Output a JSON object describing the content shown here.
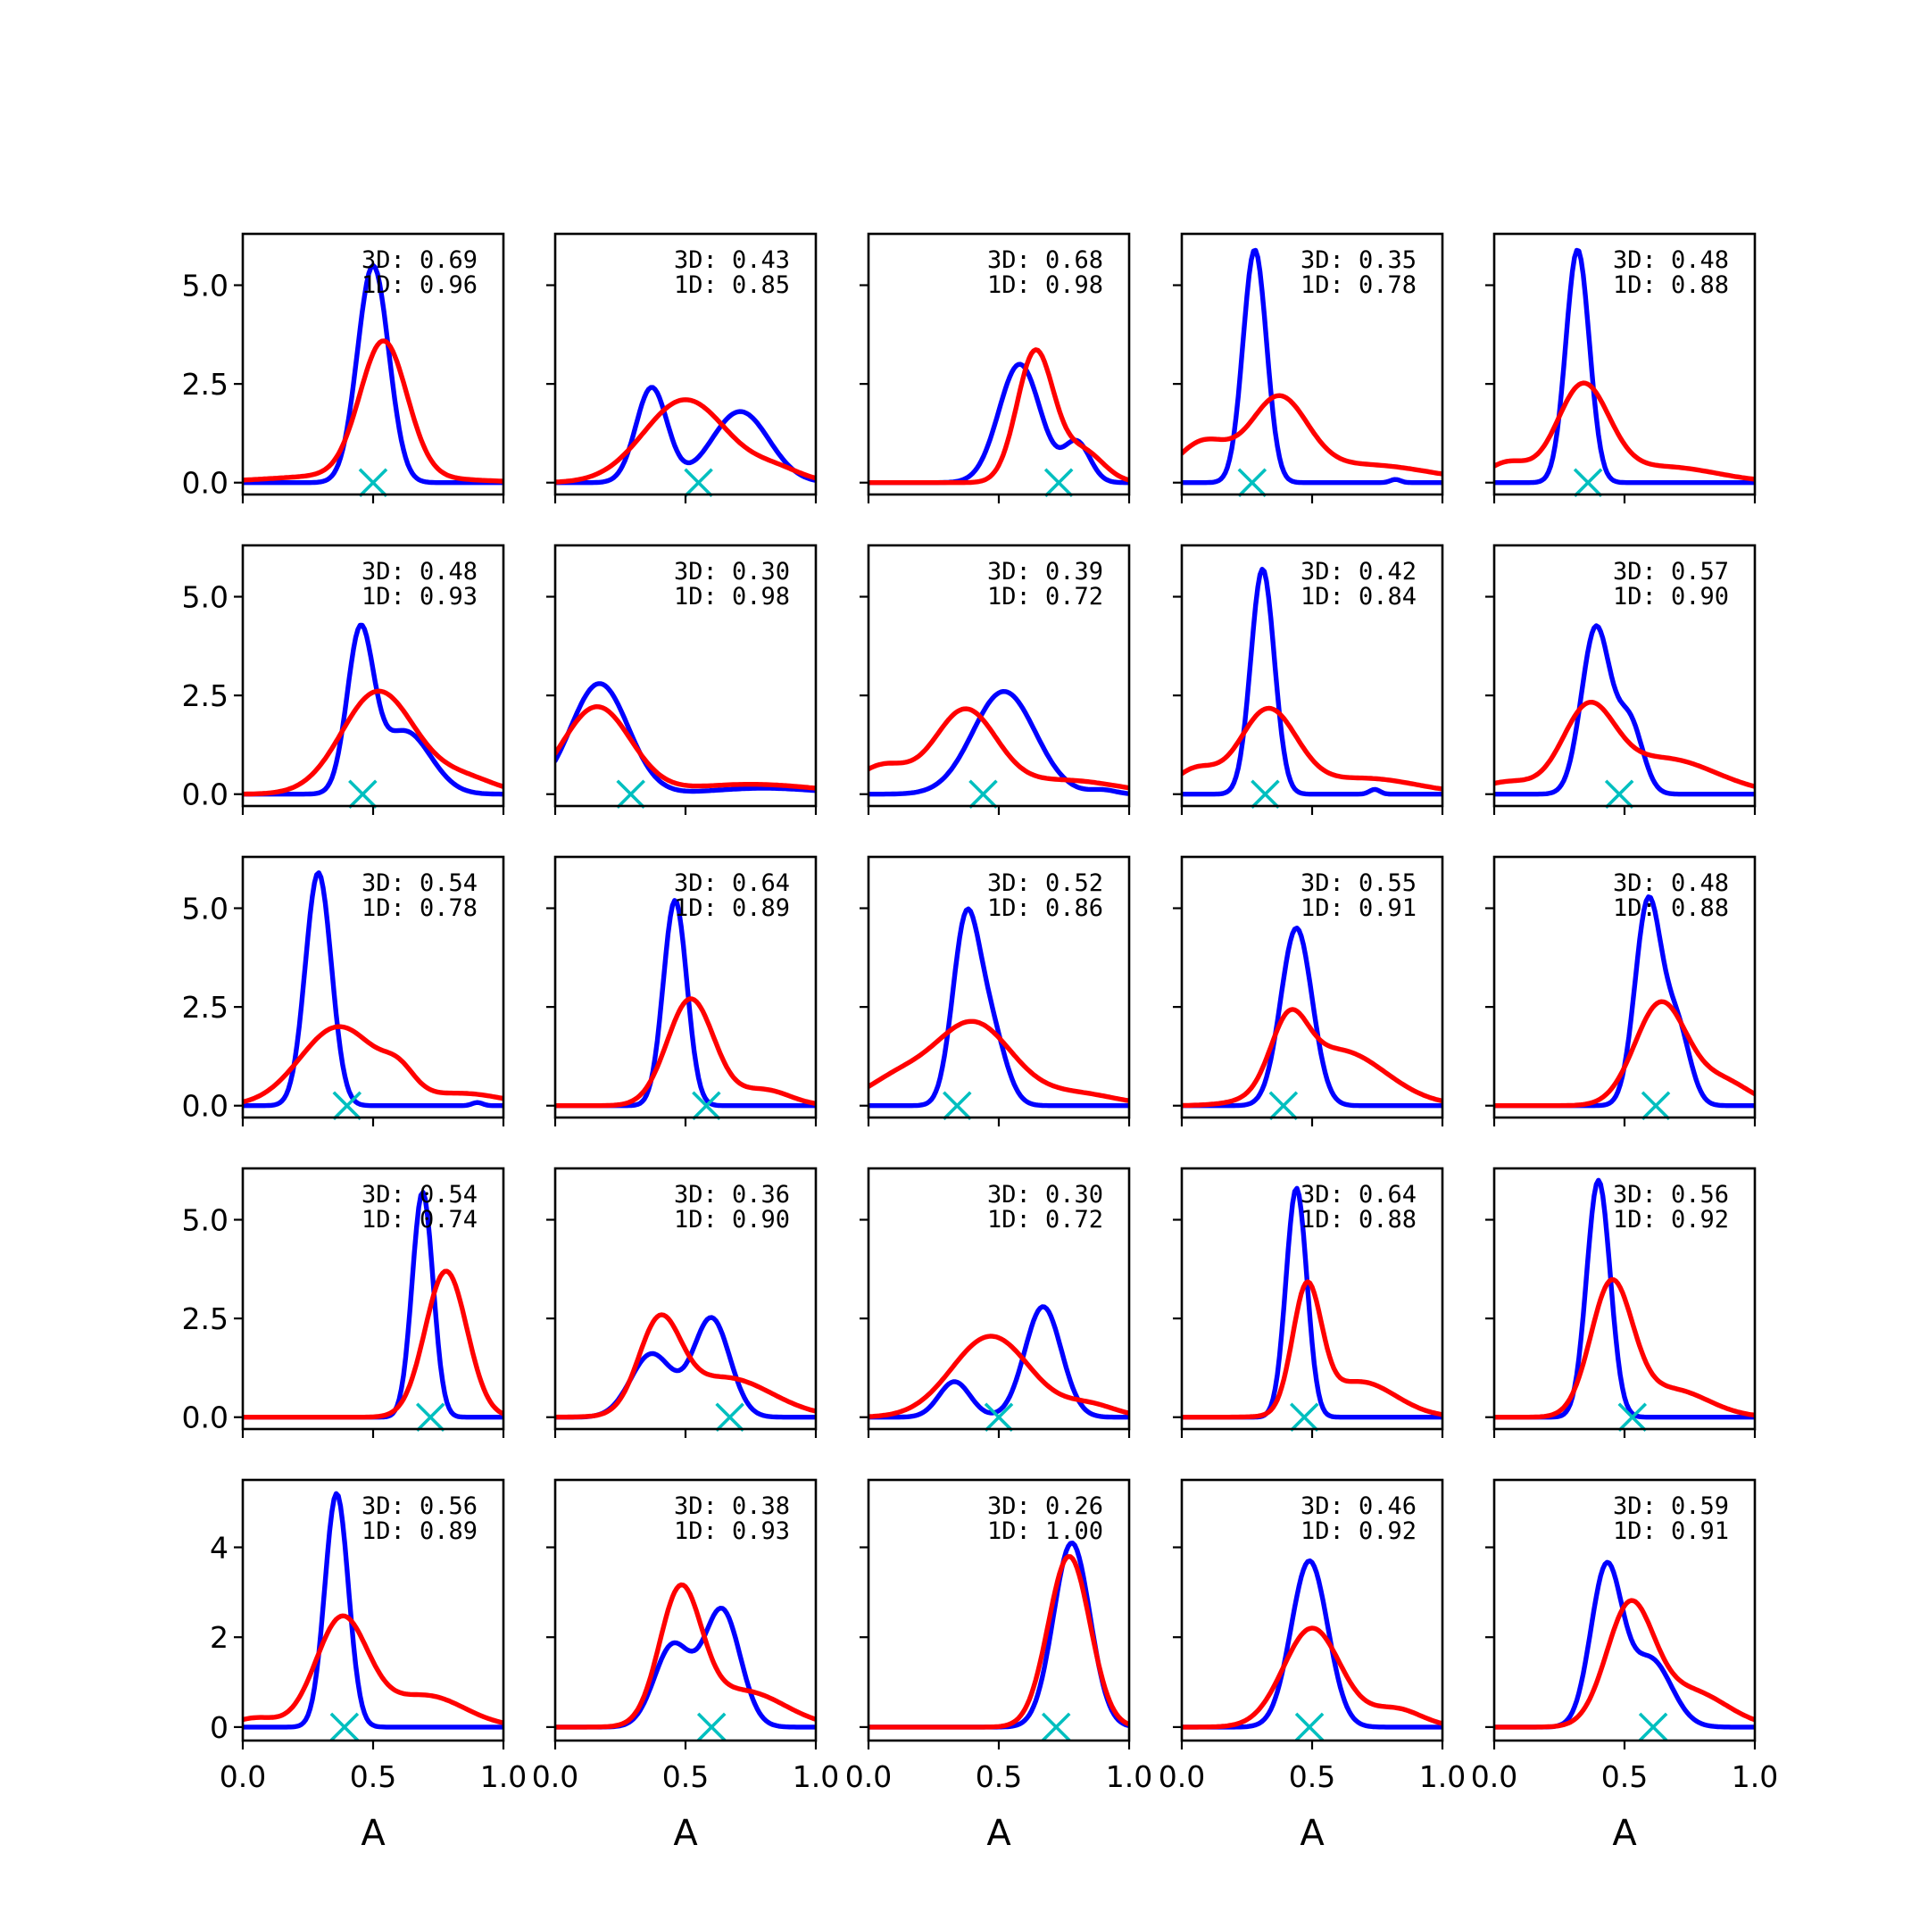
{
  "chart_data": {
    "type": "line",
    "layout": "grid",
    "rows": 5,
    "cols": 5,
    "xlabel": "A",
    "xlim": [
      0,
      1
    ],
    "xticks": [
      0.0,
      0.5,
      1.0
    ],
    "xtick_labels": [
      "0.0",
      "0.5",
      "1.0"
    ],
    "row_yticks": [
      {
        "ylim": [
          -0.3,
          6.3
        ],
        "ticks": [
          0.0,
          2.5,
          5.0
        ],
        "labels": [
          "0.0",
          "2.5",
          "5.0"
        ]
      },
      {
        "ylim": [
          -0.3,
          6.3
        ],
        "ticks": [
          0.0,
          2.5,
          5.0
        ],
        "labels": [
          "0.0",
          "2.5",
          "5.0"
        ]
      },
      {
        "ylim": [
          -0.3,
          6.3
        ],
        "ticks": [
          0.0,
          2.5,
          5.0
        ],
        "labels": [
          "0.0",
          "2.5",
          "5.0"
        ]
      },
      {
        "ylim": [
          -0.3,
          6.3
        ],
        "ticks": [
          0.0,
          2.5,
          5.0
        ],
        "labels": [
          "0.0",
          "2.5",
          "5.0"
        ]
      },
      {
        "ylim": [
          -0.3,
          5.5
        ],
        "ticks": [
          0,
          2,
          4
        ],
        "labels": [
          "0",
          "2",
          "4"
        ]
      }
    ],
    "colors": {
      "series_3d": "#0000ff",
      "series_1d": "#ff0000",
      "truth": "#00bfbf"
    },
    "panels": [
      {
        "text_3d": "3D: 0.69",
        "text_1d": "1D: 0.96",
        "truth": 0.5,
        "blue": [
          [
            0.5,
            0.06,
            5.5
          ],
          [
            1.0,
            0.0,
            0.0
          ]
        ],
        "red": [
          [
            0.54,
            0.09,
            3.4
          ],
          [
            0.45,
            0.3,
            0.2
          ]
        ]
      },
      {
        "text_3d": "3D: 0.43",
        "text_1d": "1D: 0.85",
        "truth": 0.55,
        "blue": [
          [
            0.37,
            0.06,
            2.4
          ],
          [
            0.71,
            0.11,
            1.8
          ]
        ],
        "red": [
          [
            0.5,
            0.16,
            2.1
          ],
          [
            0.85,
            0.1,
            0.3
          ]
        ]
      },
      {
        "text_3d": "3D: 0.68",
        "text_1d": "1D: 0.98",
        "truth": 0.73,
        "blue": [
          [
            0.58,
            0.08,
            3.0
          ],
          [
            0.8,
            0.05,
            1.0
          ]
        ],
        "red": [
          [
            0.64,
            0.07,
            3.3
          ],
          [
            0.82,
            0.08,
            0.8
          ]
        ]
      },
      {
        "text_3d": "3D: 0.35",
        "text_1d": "1D: 0.78",
        "truth": 0.27,
        "blue": [
          [
            0.28,
            0.045,
            5.9
          ],
          [
            0.82,
            0.02,
            0.08
          ]
        ],
        "red": [
          [
            0.37,
            0.11,
            2.0
          ],
          [
            0.08,
            0.1,
            1.0
          ],
          [
            0.7,
            0.25,
            0.45
          ]
        ]
      },
      {
        "text_3d": "3D: 0.48",
        "text_1d": "1D: 0.88",
        "truth": 0.36,
        "blue": [
          [
            0.32,
            0.045,
            5.9
          ],
          [
            1.0,
            0.0,
            0.0
          ]
        ],
        "red": [
          [
            0.34,
            0.1,
            2.4
          ],
          [
            0.05,
            0.08,
            0.5
          ],
          [
            0.65,
            0.2,
            0.4
          ]
        ]
      },
      {
        "text_3d": "3D: 0.48",
        "text_1d": "1D: 0.93",
        "truth": 0.46,
        "blue": [
          [
            0.45,
            0.05,
            3.9
          ],
          [
            0.62,
            0.1,
            1.6
          ]
        ],
        "red": [
          [
            0.52,
            0.14,
            2.6
          ],
          [
            0.85,
            0.12,
            0.4
          ]
        ]
      },
      {
        "text_3d": "3D: 0.30",
        "text_1d": "1D: 0.98",
        "truth": 0.29,
        "blue": [
          [
            0.17,
            0.11,
            2.8
          ],
          [
            0.8,
            0.2,
            0.15
          ]
        ],
        "red": [
          [
            0.16,
            0.13,
            2.2
          ],
          [
            0.75,
            0.25,
            0.25
          ]
        ]
      },
      {
        "text_3d": "3D: 0.39",
        "text_1d": "1D: 0.72",
        "truth": 0.44,
        "blue": [
          [
            0.52,
            0.12,
            2.6
          ],
          [
            0.9,
            0.05,
            0.1
          ]
        ],
        "red": [
          [
            0.37,
            0.12,
            2.1
          ],
          [
            0.05,
            0.1,
            0.7
          ],
          [
            0.75,
            0.2,
            0.35
          ]
        ]
      },
      {
        "text_3d": "3D: 0.42",
        "text_1d": "1D: 0.84",
        "truth": 0.32,
        "blue": [
          [
            0.31,
            0.045,
            5.7
          ],
          [
            0.74,
            0.02,
            0.12
          ]
        ],
        "red": [
          [
            0.33,
            0.11,
            2.1
          ],
          [
            0.05,
            0.08,
            0.6
          ],
          [
            0.7,
            0.2,
            0.4
          ]
        ]
      },
      {
        "text_3d": "3D: 0.57",
        "text_1d": "1D: 0.90",
        "truth": 0.48,
        "blue": [
          [
            0.39,
            0.055,
            4.2
          ],
          [
            0.52,
            0.05,
            1.8
          ]
        ],
        "red": [
          [
            0.36,
            0.1,
            2.0
          ],
          [
            0.05,
            0.1,
            0.3
          ],
          [
            0.65,
            0.2,
            0.9
          ]
        ]
      },
      {
        "text_3d": "3D: 0.54",
        "text_1d": "1D: 0.78",
        "truth": 0.4,
        "blue": [
          [
            0.29,
            0.05,
            5.9
          ],
          [
            0.9,
            0.02,
            0.08
          ]
        ],
        "red": [
          [
            0.37,
            0.15,
            2.0
          ],
          [
            0.6,
            0.06,
            0.5
          ],
          [
            0.85,
            0.15,
            0.3
          ]
        ]
      },
      {
        "text_3d": "3D: 0.64",
        "text_1d": "1D: 0.89",
        "truth": 0.58,
        "blue": [
          [
            0.46,
            0.045,
            5.2
          ],
          [
            1.0,
            0.0,
            0.0
          ]
        ],
        "red": [
          [
            0.52,
            0.09,
            2.7
          ],
          [
            0.8,
            0.1,
            0.4
          ]
        ]
      },
      {
        "text_3d": "3D: 0.52",
        "text_1d": "1D: 0.86",
        "truth": 0.34,
        "blue": [
          [
            0.37,
            0.05,
            4.2
          ],
          [
            0.46,
            0.06,
            2.1
          ]
        ],
        "red": [
          [
            0.4,
            0.15,
            2.1
          ],
          [
            0.1,
            0.12,
            0.6
          ],
          [
            0.8,
            0.15,
            0.3
          ]
        ]
      },
      {
        "text_3d": "3D: 0.55",
        "text_1d": "1D: 0.91",
        "truth": 0.39,
        "blue": [
          [
            0.44,
            0.06,
            4.5
          ],
          [
            1.0,
            0.0,
            0.0
          ]
        ],
        "red": [
          [
            0.41,
            0.07,
            1.6
          ],
          [
            0.6,
            0.18,
            1.4
          ]
        ]
      },
      {
        "text_3d": "3D: 0.48",
        "text_1d": "1D: 0.88",
        "truth": 0.62,
        "blue": [
          [
            0.59,
            0.05,
            5.1
          ],
          [
            0.7,
            0.05,
            2.0
          ]
        ],
        "red": [
          [
            0.64,
            0.1,
            2.6
          ],
          [
            0.88,
            0.1,
            0.6
          ]
        ]
      },
      {
        "text_3d": "3D: 0.54",
        "text_1d": "1D: 0.74",
        "truth": 0.72,
        "blue": [
          [
            0.69,
            0.04,
            5.7
          ],
          [
            1.0,
            0.0,
            0.0
          ]
        ],
        "red": [
          [
            0.78,
            0.08,
            3.7
          ],
          [
            1.0,
            0.0,
            0.0
          ]
        ]
      },
      {
        "text_3d": "3D: 0.36",
        "text_1d": "1D: 0.90",
        "truth": 0.67,
        "blue": [
          [
            0.37,
            0.08,
            1.6
          ],
          [
            0.6,
            0.07,
            2.5
          ]
        ],
        "red": [
          [
            0.4,
            0.08,
            2.2
          ],
          [
            0.65,
            0.18,
            1.0
          ]
        ]
      },
      {
        "text_3d": "3D: 0.30",
        "text_1d": "1D: 0.72",
        "truth": 0.5,
        "blue": [
          [
            0.33,
            0.06,
            0.9
          ],
          [
            0.67,
            0.07,
            2.8
          ]
        ],
        "red": [
          [
            0.47,
            0.15,
            2.05
          ],
          [
            0.85,
            0.1,
            0.3
          ]
        ]
      },
      {
        "text_3d": "3D: 0.64",
        "text_1d": "1D: 0.88",
        "truth": 0.47,
        "blue": [
          [
            0.44,
            0.04,
            5.8
          ],
          [
            1.0,
            0.0,
            0.0
          ]
        ],
        "red": [
          [
            0.48,
            0.055,
            3.1
          ],
          [
            0.68,
            0.14,
            0.9
          ]
        ]
      },
      {
        "text_3d": "3D: 0.56",
        "text_1d": "1D: 0.92",
        "truth": 0.53,
        "blue": [
          [
            0.4,
            0.045,
            6.0
          ],
          [
            1.0,
            0.0,
            0.0
          ]
        ],
        "red": [
          [
            0.45,
            0.08,
            3.3
          ],
          [
            0.68,
            0.14,
            0.7
          ]
        ]
      },
      {
        "text_3d": "3D: 0.56",
        "text_1d": "1D: 0.89",
        "truth": 0.39,
        "blue": [
          [
            0.36,
            0.045,
            5.2
          ],
          [
            1.0,
            0.0,
            0.0
          ]
        ],
        "red": [
          [
            0.38,
            0.1,
            2.4
          ],
          [
            0.05,
            0.08,
            0.2
          ],
          [
            0.7,
            0.15,
            0.7
          ]
        ]
      },
      {
        "text_3d": "3D: 0.38",
        "text_1d": "1D: 0.93",
        "truth": 0.6,
        "blue": [
          [
            0.45,
            0.07,
            1.8
          ],
          [
            0.64,
            0.07,
            2.6
          ]
        ],
        "red": [
          [
            0.48,
            0.08,
            2.9
          ],
          [
            0.72,
            0.16,
            0.8
          ]
        ]
      },
      {
        "text_3d": "3D: 0.26",
        "text_1d": "1D: 1.00",
        "truth": 0.72,
        "blue": [
          [
            0.78,
            0.07,
            4.1
          ],
          [
            1.0,
            0.0,
            0.0
          ]
        ],
        "red": [
          [
            0.77,
            0.08,
            3.8
          ],
          [
            1.0,
            0.0,
            0.0
          ]
        ]
      },
      {
        "text_3d": "3D: 0.46",
        "text_1d": "1D: 0.92",
        "truth": 0.49,
        "blue": [
          [
            0.49,
            0.07,
            3.7
          ],
          [
            1.0,
            0.0,
            0.0
          ]
        ],
        "red": [
          [
            0.5,
            0.11,
            2.2
          ],
          [
            0.82,
            0.1,
            0.4
          ]
        ]
      },
      {
        "text_3d": "3D: 0.59",
        "text_1d": "1D: 0.91",
        "truth": 0.61,
        "blue": [
          [
            0.43,
            0.06,
            3.5
          ],
          [
            0.6,
            0.08,
            1.5
          ]
        ],
        "red": [
          [
            0.52,
            0.09,
            2.6
          ],
          [
            0.75,
            0.14,
            0.8
          ]
        ]
      }
    ]
  }
}
